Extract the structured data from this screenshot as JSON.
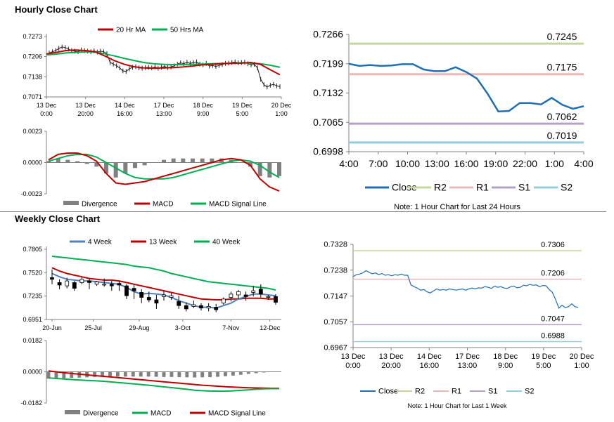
{
  "sections": {
    "hourly_title": "Hourly Close Chart",
    "weekly_title": "Weekly Close Chart"
  },
  "colors": {
    "price": "#1f1f1f",
    "ma_short": "#c00000",
    "ma_long": "#00b050",
    "ma_4w": "#4f81bd",
    "close": "#1f6fb4",
    "r2": "#c3d69b",
    "r1": "#e6b9b8",
    "s1": "#b3a2c7",
    "s2": "#93cddd",
    "divergence": "#808080",
    "axis": "#808080"
  },
  "chart_data": [
    {
      "id": "hourly_price",
      "type": "line",
      "title": "",
      "legend": [
        "20 Hr MA",
        "50 Hrs MA"
      ],
      "ylim": [
        0.7071,
        0.7273
      ],
      "yticks": [
        0.7273,
        0.7206,
        0.7138,
        0.7071
      ],
      "ytick_labels": [
        "0.7273",
        "0.7206",
        "0.7138",
        "0.7071"
      ],
      "xtick_labels": [
        [
          "13 Dec",
          "0:00"
        ],
        [
          "13 Dec",
          "20:00"
        ],
        [
          "14 Dec",
          "16:00"
        ],
        [
          "17 Dec",
          "13:00"
        ],
        [
          "18 Dec",
          "9:00"
        ],
        [
          "19 Dec",
          "5:00"
        ],
        [
          "20 Dec",
          "1:00"
        ]
      ],
      "price": [
        0.7218,
        0.7222,
        0.7226,
        0.7233,
        0.7238,
        0.7236,
        0.7231,
        0.7226,
        0.7224,
        0.7222,
        0.7228,
        0.7226,
        0.7224,
        0.7222,
        0.7225,
        0.7221,
        0.7224,
        0.7222,
        0.7216,
        0.7186,
        0.7181,
        0.7175,
        0.7168,
        0.7158,
        0.7156,
        0.7165,
        0.717,
        0.7172,
        0.7168,
        0.7167,
        0.7169,
        0.717,
        0.7168,
        0.7171,
        0.7167,
        0.717,
        0.7173,
        0.7169,
        0.7171,
        0.7175,
        0.7181,
        0.7185,
        0.7182,
        0.7187,
        0.7183,
        0.7186,
        0.7188,
        0.7181,
        0.7178,
        0.7183,
        0.7174,
        0.7176,
        0.7173,
        0.7176,
        0.7179,
        0.7183,
        0.7184,
        0.7186,
        0.7188,
        0.7185,
        0.7186,
        0.7187,
        0.7182,
        0.7178,
        0.718,
        0.7168,
        0.713,
        0.7112,
        0.7104,
        0.711,
        0.7113,
        0.7108,
        0.7105
      ],
      "series": [
        {
          "name": "20 Hr MA",
          "values": [
            0.7215,
            0.722,
            0.7226,
            0.7228,
            0.7226,
            0.7222,
            0.7208,
            0.7192,
            0.718,
            0.7172,
            0.7168,
            0.7167,
            0.7168,
            0.7169,
            0.7171,
            0.7174,
            0.7178,
            0.718,
            0.7182,
            0.7183,
            0.7184,
            0.7186,
            0.718,
            0.7162,
            0.7145
          ]
        },
        {
          "name": "50 Hrs MA",
          "values": [
            0.7212,
            0.7214,
            0.7218,
            0.722,
            0.7222,
            0.7221,
            0.7215,
            0.7208,
            0.72,
            0.7193,
            0.7186,
            0.7182,
            0.718,
            0.7179,
            0.7179,
            0.718,
            0.7181,
            0.7182,
            0.7183,
            0.7184,
            0.7185,
            0.7184,
            0.7182,
            0.7177,
            0.717
          ]
        }
      ]
    },
    {
      "id": "hourly_macd",
      "type": "line",
      "title": "",
      "legend": [
        "Divergence",
        "MACD",
        "MACD Signal Line"
      ],
      "ylim": [
        -0.0023,
        0.0023
      ],
      "yticks": [
        0.0023,
        0.0,
        -0.0023
      ],
      "ytick_labels": [
        "0.0023",
        "0.0000",
        "-0.0023"
      ],
      "series": [
        {
          "name": "MACD",
          "values": [
            0.0002,
            0.0006,
            0.0007,
            0.0007,
            0.0005,
            0.0001,
            -0.0008,
            -0.0015,
            -0.0016,
            -0.0015,
            -0.0014,
            -0.0012,
            -0.001,
            -0.0008,
            -0.0006,
            -0.0004,
            -0.0002,
            0.0,
            0.0002,
            0.0003,
            0.0002,
            -0.0002,
            -0.0012,
            -0.0018,
            -0.0021
          ]
        },
        {
          "name": "MACD Signal Line",
          "values": [
            0.0001,
            0.0003,
            0.0005,
            0.0006,
            0.0006,
            0.0004,
            0.0,
            -0.0004,
            -0.0008,
            -0.0011,
            -0.0012,
            -0.0012,
            -0.0012,
            -0.0011,
            -0.0009,
            -0.0007,
            -0.0005,
            -0.0003,
            -0.0001,
            0.0001,
            0.0002,
            0.0001,
            -0.0002,
            -0.0007,
            -0.0011
          ]
        },
        {
          "name": "Divergence",
          "values": [
            0.0001,
            0.0003,
            0.0002,
            0.0001,
            -0.0001,
            -0.0003,
            -0.0008,
            -0.0011,
            -0.0008,
            -0.0004,
            -0.0002,
            0.0,
            0.0002,
            0.0003,
            0.0003,
            0.0003,
            0.0003,
            0.0003,
            0.0003,
            0.0002,
            0.0,
            -0.0003,
            -0.001,
            -0.0011,
            -0.001
          ]
        }
      ]
    },
    {
      "id": "hourly_24h",
      "type": "line",
      "title": "",
      "legend": [
        "Close",
        "R2",
        "R1",
        "S1",
        "S2"
      ],
      "note": "Note: 1 Hour Chart for Last 24 Hours",
      "ylim": [
        0.6998,
        0.7266
      ],
      "yticks": [
        0.7266,
        0.7199,
        0.7132,
        0.7065,
        0.6998
      ],
      "ytick_labels": [
        "0.7266",
        "0.7199",
        "0.7132",
        "0.7065",
        "0.6998"
      ],
      "xtick_labels": [
        "4:00",
        "7:00",
        "10:00",
        "13:00",
        "16:00",
        "19:00",
        "22:00",
        "1:00",
        "4:00"
      ],
      "levels": [
        {
          "name": "R2",
          "value": 0.7245,
          "label": "0.7245"
        },
        {
          "name": "R1",
          "value": 0.7175,
          "label": "0.7175"
        },
        {
          "name": "S1",
          "value": 0.7062,
          "label": "0.7062"
        },
        {
          "name": "S2",
          "value": 0.7019,
          "label": "0.7019"
        }
      ],
      "series": [
        {
          "name": "Close",
          "values": [
            0.7199,
            0.7194,
            0.7196,
            0.7194,
            0.7195,
            0.7198,
            0.7198,
            0.7186,
            0.7182,
            0.7182,
            0.7191,
            0.718,
            0.7165,
            0.713,
            0.709,
            0.7091,
            0.7109,
            0.7109,
            0.7106,
            0.7121,
            0.7105,
            0.7096,
            0.7102
          ]
        }
      ]
    },
    {
      "id": "weekly_price",
      "type": "line",
      "title": "",
      "legend": [
        "4 Week",
        "13 Week",
        "40 Week"
      ],
      "ylim": [
        0.6951,
        0.7805
      ],
      "yticks": [
        0.7805,
        0.752,
        0.7235,
        0.6951
      ],
      "ytick_labels": [
        "0.7805",
        "0.7520",
        "0.7235",
        "0.6951"
      ],
      "xtick_labels": [
        "20-Jun",
        "25-Jul",
        "29-Aug",
        "3-Oct",
        "7-Nov",
        "12-Dec"
      ],
      "candles": [
        {
          "o": 0.746,
          "h": 0.756,
          "l": 0.738,
          "c": 0.744
        },
        {
          "o": 0.74,
          "h": 0.744,
          "l": 0.732,
          "c": 0.737
        },
        {
          "o": 0.736,
          "h": 0.746,
          "l": 0.733,
          "c": 0.742
        },
        {
          "o": 0.74,
          "h": 0.742,
          "l": 0.73,
          "c": 0.733
        },
        {
          "o": 0.74,
          "h": 0.747,
          "l": 0.738,
          "c": 0.744
        },
        {
          "o": 0.742,
          "h": 0.745,
          "l": 0.732,
          "c": 0.74
        },
        {
          "o": 0.738,
          "h": 0.742,
          "l": 0.736,
          "c": 0.741
        },
        {
          "o": 0.737,
          "h": 0.745,
          "l": 0.735,
          "c": 0.738
        },
        {
          "o": 0.738,
          "h": 0.742,
          "l": 0.73,
          "c": 0.736
        },
        {
          "o": 0.739,
          "h": 0.742,
          "l": 0.73,
          "c": 0.737
        },
        {
          "o": 0.736,
          "h": 0.738,
          "l": 0.72,
          "c": 0.724
        },
        {
          "o": 0.733,
          "h": 0.738,
          "l": 0.72,
          "c": 0.73
        },
        {
          "o": 0.728,
          "h": 0.732,
          "l": 0.715,
          "c": 0.722
        },
        {
          "o": 0.722,
          "h": 0.729,
          "l": 0.716,
          "c": 0.719
        },
        {
          "o": 0.719,
          "h": 0.725,
          "l": 0.708,
          "c": 0.715
        },
        {
          "o": 0.723,
          "h": 0.73,
          "l": 0.718,
          "c": 0.725
        },
        {
          "o": 0.722,
          "h": 0.727,
          "l": 0.719,
          "c": 0.724
        },
        {
          "o": 0.717,
          "h": 0.724,
          "l": 0.708,
          "c": 0.712
        },
        {
          "o": 0.712,
          "h": 0.716,
          "l": 0.705,
          "c": 0.708
        },
        {
          "o": 0.711,
          "h": 0.718,
          "l": 0.709,
          "c": 0.713
        },
        {
          "o": 0.712,
          "h": 0.715,
          "l": 0.706,
          "c": 0.709
        },
        {
          "o": 0.709,
          "h": 0.715,
          "l": 0.705,
          "c": 0.711
        },
        {
          "o": 0.71,
          "h": 0.714,
          "l": 0.704,
          "c": 0.707
        },
        {
          "o": 0.715,
          "h": 0.722,
          "l": 0.713,
          "c": 0.72
        },
        {
          "o": 0.722,
          "h": 0.729,
          "l": 0.717,
          "c": 0.726
        },
        {
          "o": 0.725,
          "h": 0.731,
          "l": 0.72,
          "c": 0.729
        },
        {
          "o": 0.725,
          "h": 0.729,
          "l": 0.718,
          "c": 0.723
        },
        {
          "o": 0.728,
          "h": 0.736,
          "l": 0.723,
          "c": 0.73
        },
        {
          "o": 0.732,
          "h": 0.738,
          "l": 0.722,
          "c": 0.726
        },
        {
          "o": 0.722,
          "h": 0.725,
          "l": 0.719,
          "c": 0.723
        },
        {
          "o": 0.723,
          "h": 0.726,
          "l": 0.713,
          "c": 0.716
        }
      ],
      "series": [
        {
          "name": "4 Week",
          "values": [
            0.751,
            0.747,
            0.744,
            0.743,
            0.742,
            0.742,
            0.741,
            0.74,
            0.739,
            0.738,
            0.734,
            0.729,
            0.726,
            0.727,
            0.726,
            0.725,
            0.722,
            0.718,
            0.715,
            0.712,
            0.71,
            0.71,
            0.709,
            0.712,
            0.715,
            0.72,
            0.723,
            0.726,
            0.726,
            0.725,
            0.724
          ]
        },
        {
          "name": "13 Week",
          "values": [
            0.758,
            0.754,
            0.751,
            0.749,
            0.747,
            0.745,
            0.744,
            0.743,
            0.743,
            0.742,
            0.74,
            0.738,
            0.736,
            0.734,
            0.732,
            0.73,
            0.728,
            0.726,
            0.724,
            0.722,
            0.72,
            0.7195,
            0.719,
            0.719,
            0.72,
            0.72,
            0.721,
            0.721,
            0.721,
            0.72,
            0.72
          ]
        },
        {
          "name": "40 Week",
          "values": [
            0.772,
            0.771,
            0.77,
            0.769,
            0.768,
            0.767,
            0.766,
            0.765,
            0.764,
            0.763,
            0.762,
            0.76,
            0.759,
            0.758,
            0.756,
            0.754,
            0.751,
            0.749,
            0.747,
            0.745,
            0.743,
            0.741,
            0.74,
            0.739,
            0.738,
            0.737,
            0.736,
            0.735,
            0.734,
            0.733,
            0.731
          ]
        }
      ]
    },
    {
      "id": "weekly_macd",
      "type": "line",
      "title": "",
      "legend": [
        "Divergence",
        "MACD",
        "MACD Signal Line"
      ],
      "ylim": [
        -0.0182,
        0.0182
      ],
      "yticks": [
        0.0182,
        0.0,
        -0.0182
      ],
      "ytick_labels": [
        "0.0182",
        "0.0000",
        "-0.0182"
      ],
      "series": [
        {
          "name": "MACD",
          "values": [
            -0.0035,
            -0.0039,
            -0.0042,
            -0.0045,
            -0.0048,
            -0.005,
            -0.0052,
            -0.0055,
            -0.0058,
            -0.0062,
            -0.0066,
            -0.007,
            -0.0074,
            -0.0078,
            -0.0083,
            -0.0088,
            -0.0092,
            -0.0097,
            -0.0102,
            -0.0107,
            -0.011,
            -0.0112,
            -0.0113,
            -0.0113,
            -0.0111,
            -0.0108,
            -0.0105,
            -0.0102,
            -0.0099,
            -0.0098,
            -0.0098
          ]
        },
        {
          "name": "MACD Signal Line",
          "values": [
            0.0005,
            0.0,
            -0.0005,
            -0.001,
            -0.0014,
            -0.0018,
            -0.0022,
            -0.0026,
            -0.003,
            -0.0034,
            -0.0038,
            -0.0042,
            -0.0046,
            -0.005,
            -0.0054,
            -0.0058,
            -0.0062,
            -0.0066,
            -0.007,
            -0.0074,
            -0.0078,
            -0.0081,
            -0.0084,
            -0.0087,
            -0.0089,
            -0.0091,
            -0.0093,
            -0.0094,
            -0.0095,
            -0.0096,
            -0.0096
          ]
        },
        {
          "name": "Divergence",
          "values": [
            -0.004,
            -0.0039,
            -0.0037,
            -0.0035,
            -0.0034,
            -0.0032,
            -0.003,
            -0.0029,
            -0.0028,
            -0.0028,
            -0.0028,
            -0.0028,
            -0.0028,
            -0.0028,
            -0.0029,
            -0.003,
            -0.003,
            -0.0031,
            -0.0032,
            -0.0033,
            -0.0032,
            -0.0031,
            -0.0029,
            -0.0026,
            -0.0022,
            -0.0017,
            -0.0012,
            -0.0008,
            -0.0004,
            -0.0002,
            -0.0002
          ]
        }
      ]
    },
    {
      "id": "weekly_1w",
      "type": "line",
      "title": "",
      "legend": [
        "Close",
        "R2",
        "R1",
        "S1",
        "S2"
      ],
      "note": "Note: 1 Hour Chart for Last 1 Week",
      "ylim": [
        0.6967,
        0.7328
      ],
      "yticks": [
        0.7328,
        0.7238,
        0.7147,
        0.7057,
        0.6967
      ],
      "ytick_labels": [
        "0.7328",
        "0.7238",
        "0.7147",
        "0.7057",
        "0.6967"
      ],
      "xtick_labels": [
        [
          "13 Dec",
          "0:00"
        ],
        [
          "13 Dec",
          "20:00"
        ],
        [
          "14 Dec",
          "16:00"
        ],
        [
          "17 Dec",
          "13:00"
        ],
        [
          "18 Dec",
          "9:00"
        ],
        [
          "19 Dec",
          "5:00"
        ],
        [
          "20 Dec",
          "1:00"
        ]
      ],
      "levels": [
        {
          "name": "R2",
          "value": 0.7306,
          "label": "0.7306"
        },
        {
          "name": "R1",
          "value": 0.7206,
          "label": "0.7206"
        },
        {
          "name": "S1",
          "value": 0.7047,
          "label": "0.7047"
        },
        {
          "name": "S2",
          "value": 0.6988,
          "label": "0.6988"
        }
      ],
      "series": [
        {
          "name": "Close",
          "values": [
            0.7215,
            0.7222,
            0.7224,
            0.7228,
            0.7236,
            0.723,
            0.7225,
            0.7228,
            0.7222,
            0.7226,
            0.722,
            0.7222,
            0.7218,
            0.7222,
            0.722,
            0.7224,
            0.722,
            0.722,
            0.7186,
            0.718,
            0.7175,
            0.7168,
            0.717,
            0.7162,
            0.7158,
            0.7165,
            0.7172,
            0.7168,
            0.717,
            0.7168,
            0.7172,
            0.717,
            0.7168,
            0.717,
            0.7172,
            0.7168,
            0.7172,
            0.7175,
            0.7172,
            0.7176,
            0.7175,
            0.718,
            0.7178,
            0.7174,
            0.7182,
            0.7178,
            0.718,
            0.7175,
            0.7174,
            0.718,
            0.7182,
            0.7176,
            0.7178,
            0.7185,
            0.7183,
            0.7188,
            0.7185,
            0.7186,
            0.718,
            0.7184,
            0.7183,
            0.717,
            0.716,
            0.7135,
            0.7105,
            0.7115,
            0.7107,
            0.711,
            0.712,
            0.711,
            0.7108
          ]
        }
      ]
    }
  ]
}
